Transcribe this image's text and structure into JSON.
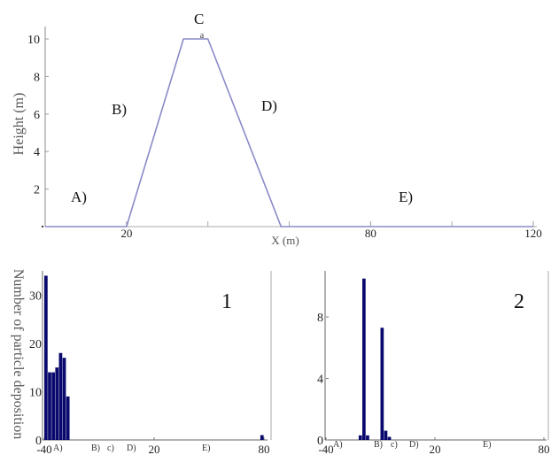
{
  "chart_data": [
    {
      "type": "line",
      "xlabel": "X (m)",
      "ylabel": "Height (m)",
      "xlim": [
        0,
        120
      ],
      "ylim": [
        0,
        10
      ],
      "x_ticks": [
        "20",
        "80",
        "120"
      ],
      "y_ticks": [
        "0",
        "2",
        "4",
        "6",
        "8",
        "10"
      ],
      "x_minor_ticks": [
        40,
        60,
        100
      ],
      "series": [
        {
          "x": [
            0,
            20,
            34,
            40,
            58,
            120
          ],
          "y": [
            0,
            0,
            10,
            10,
            0,
            0
          ]
        }
      ],
      "zone_labels": [
        "A)",
        "B)",
        "C",
        "D)",
        "E)"
      ],
      "summit_mark": "a",
      "color": "#8a8ac8"
    },
    {
      "type": "bar",
      "panel_number": "1",
      "ylabel": "Number of particle deposition",
      "xlim": [
        -40,
        80
      ],
      "ylim": [
        0,
        35
      ],
      "x_ticks": [
        "-40",
        "20",
        "80"
      ],
      "y_ticks": [
        "0",
        "10",
        "20",
        "30"
      ],
      "zone_labels": [
        "A)",
        "B)",
        "c)",
        "D)",
        "E)"
      ],
      "bin_width": 2,
      "bars": [
        {
          "x": -40,
          "y": 34
        },
        {
          "x": -38,
          "y": 14
        },
        {
          "x": -36,
          "y": 14
        },
        {
          "x": -34,
          "y": 15
        },
        {
          "x": -32,
          "y": 18
        },
        {
          "x": -30,
          "y": 17
        },
        {
          "x": -28,
          "y": 9
        },
        {
          "x": 78,
          "y": 1
        }
      ],
      "color": "#0a0a6e"
    },
    {
      "type": "bar",
      "panel_number": "2",
      "xlim": [
        -40,
        80
      ],
      "ylim": [
        0,
        11
      ],
      "x_ticks": [
        "-40",
        "20",
        "80"
      ],
      "y_ticks": [
        "0",
        "4",
        "8"
      ],
      "zone_labels": [
        "A)",
        "B)",
        "c)",
        "D)",
        "E)"
      ],
      "bin_width": 2,
      "bars": [
        {
          "x": -22,
          "y": 0.3
        },
        {
          "x": -20,
          "y": 10.5
        },
        {
          "x": -18,
          "y": 0.3
        },
        {
          "x": -10,
          "y": 7.3
        },
        {
          "x": -8,
          "y": 0.6
        },
        {
          "x": -6,
          "y": 0.2
        }
      ],
      "color": "#0a0a6e"
    }
  ]
}
